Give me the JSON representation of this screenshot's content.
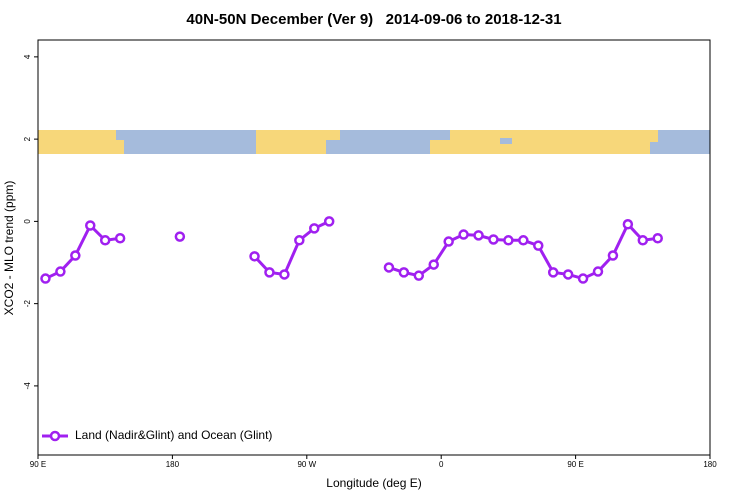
{
  "chart_data": {
    "type": "line",
    "title": "40N-50N December (Ver 9)   2014-09-06 to 2018-12-31",
    "xlabel": "Longitude (deg E)",
    "ylabel": "XCO2 - MLO trend (ppm)",
    "x": [
      95,
      105,
      115,
      125,
      135,
      145,
      155,
      165,
      175,
      185,
      195,
      205,
      215,
      225,
      235,
      245,
      255,
      265,
      275,
      285,
      295,
      305,
      315,
      325,
      335,
      345,
      355,
      365,
      375,
      385,
      395,
      405,
      415,
      425,
      435,
      445,
      455,
      465,
      475,
      485,
      495,
      505
    ],
    "series": [
      {
        "name": "Land (Nadir&Glint) and Ocean (Glint)",
        "color": "#a020f0",
        "values": [
          -1.39,
          -1.22,
          -0.83,
          -0.1,
          -0.46,
          -0.41,
          null,
          null,
          null,
          -0.37,
          null,
          null,
          null,
          null,
          -0.85,
          -1.24,
          -1.29,
          -0.46,
          -0.17,
          0.0,
          null,
          null,
          null,
          -1.12,
          -1.24,
          -1.32,
          -1.05,
          -0.49,
          -0.32,
          -0.34,
          -0.44,
          -0.46,
          -0.46,
          -0.59,
          -1.24,
          -1.29,
          -1.39,
          -1.22,
          -0.83,
          -0.07,
          -0.46,
          -0.41
        ]
      }
    ],
    "xlim": [
      90,
      540
    ],
    "xticks": [
      {
        "value": 90,
        "label": "90 E"
      },
      {
        "value": 180,
        "label": "180"
      },
      {
        "value": 270,
        "label": "90 W"
      },
      {
        "value": 360,
        "label": "0"
      },
      {
        "value": 450,
        "label": "90 E"
      },
      {
        "value": 540,
        "label": "180"
      }
    ],
    "ylim": [
      -5.68,
      4.41
    ],
    "yticks": [
      -4,
      -2,
      0,
      2,
      4
    ],
    "legend": "bottom-left"
  }
}
